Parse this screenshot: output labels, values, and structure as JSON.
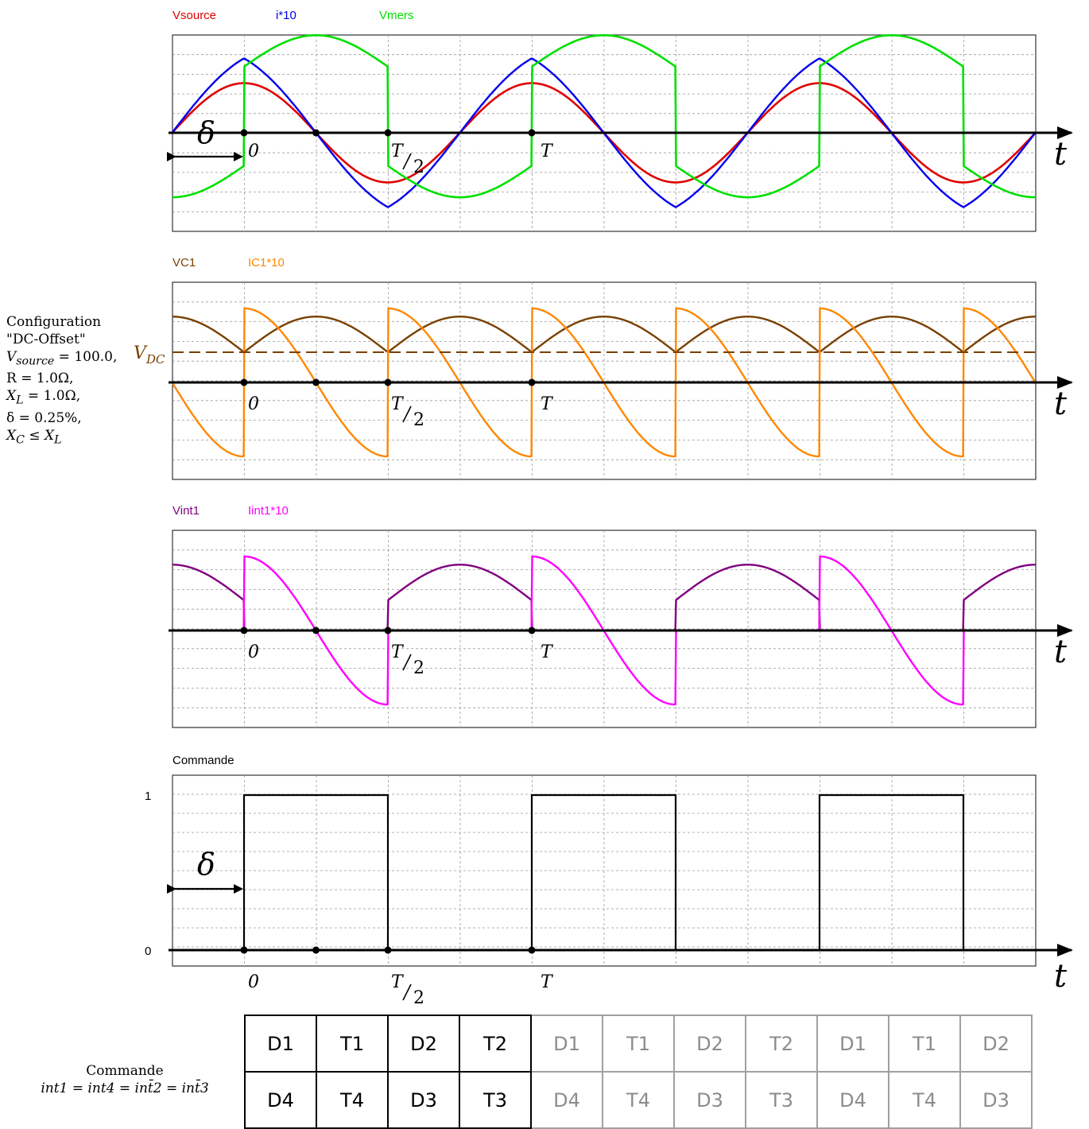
{
  "panels": [
    {
      "id": "p1",
      "legend": [
        {
          "label": "Vsource",
          "color": "#e00000"
        },
        {
          "label": "i*10",
          "color": "#0000ee"
        },
        {
          "label": "Vmers",
          "color": "#00e000"
        }
      ],
      "axis": {
        "zero": "0",
        "half_num": "T",
        "half_den": "2",
        "period": "T",
        "t": "t"
      },
      "annotation": "δ"
    },
    {
      "id": "p2",
      "legend": [
        {
          "label": "VC1",
          "color": "#7a4000"
        },
        {
          "label": "IC1*10",
          "color": "#ff8800"
        }
      ],
      "axis": {
        "zero": "0",
        "half_num": "T",
        "half_den": "2",
        "period": "T",
        "t": "t"
      },
      "vdc_main": "V",
      "vdc_sub": "DC"
    },
    {
      "id": "p3",
      "legend": [
        {
          "label": "Vint1",
          "color": "#800080"
        },
        {
          "label": "Iint1*10",
          "color": "#ff00ff"
        }
      ],
      "axis": {
        "zero": "0",
        "half_num": "T",
        "half_den": "2",
        "period": "T",
        "t": "t"
      }
    },
    {
      "id": "p4",
      "legend": [
        {
          "label": "Commande",
          "color": "#000000"
        }
      ],
      "axis": {
        "zero": "0",
        "half_num": "T",
        "half_den": "2",
        "period": "T",
        "t": "t"
      },
      "annotation": "δ",
      "y_ticks": [
        "1",
        "0"
      ]
    }
  ],
  "config": {
    "title": "Configuration",
    "mode": "\"DC-Offset\"",
    "vsource_sym": "V",
    "vsource_sub": "source",
    "vsource_val": "= 100.0,",
    "r": "R = 1.0Ω,",
    "xl_sym": "X",
    "xl_sub": "L",
    "xl_val": "= 1.0Ω,",
    "delta": "δ = 0.25%,",
    "xc_sym": "X",
    "xc_sub": "C",
    "xc_rel": "≤",
    "xc_rhs_sub": "L"
  },
  "commande_note": {
    "title": "Commande",
    "eq": "int1 = int4 = int̄2 = int̄3"
  },
  "sequence": {
    "row1": [
      "D1",
      "T1",
      "D2",
      "T2",
      "D1",
      "T1",
      "D2",
      "T2",
      "D1",
      "T1",
      "D2"
    ],
    "row2": [
      "D4",
      "T4",
      "D3",
      "T3",
      "D4",
      "T4",
      "D3",
      "T3",
      "D4",
      "T4",
      "D3"
    ],
    "highlighted_count": 4
  },
  "chart_data": [
    {
      "type": "line",
      "x_unit": "t in periods (0 = switching instant, 1 = T)",
      "x_range": [
        -0.25,
        2.75
      ],
      "series": [
        {
          "name": "Vsource",
          "values_desc": "sine, amplitude 0.6 (rel.), zero-crossing rising at -δ",
          "amplitude": 0.6
        },
        {
          "name": "i*10",
          "values_desc": "triangular-ish, peak 0.9 at t=0, min -0.9 at t=T/2",
          "amplitude": 0.9
        },
        {
          "name": "Vmers",
          "values_desc": "piecewise sine, jumps at 0 and T/2, peak 0.78",
          "amplitude": 0.78
        }
      ]
    },
    {
      "type": "line",
      "x_range": [
        -0.25,
        2.75
      ],
      "series": [
        {
          "name": "VC1",
          "values_desc": "arches between VDC=0.55 and 1.20"
        },
        {
          "name": "IC1*10",
          "values_desc": "sawtooth-like, +1.35 at jump, -1.35 before jump"
        }
      ],
      "VDC": 0.55
    },
    {
      "type": "line",
      "x_range": [
        -0.25,
        2.75
      ],
      "series": [
        {
          "name": "Vint1",
          "values_desc": "positive arches during off intervals, zero otherwise"
        },
        {
          "name": "Iint1*10",
          "values_desc": "decays from 1.35 to -1.35 during on intervals"
        }
      ]
    },
    {
      "type": "line",
      "x_range": [
        -0.25,
        2.75
      ],
      "y_range": [
        0,
        1
      ],
      "series": [
        {
          "name": "Commande",
          "x": [
            -0.25,
            0,
            0,
            0.5,
            0.5,
            1,
            1,
            1.5,
            1.5,
            2,
            2,
            2.5,
            2.5,
            2.75
          ],
          "values": [
            0,
            0,
            1,
            1,
            0,
            0,
            1,
            1,
            0,
            0,
            1,
            1,
            0,
            0
          ]
        }
      ]
    }
  ]
}
